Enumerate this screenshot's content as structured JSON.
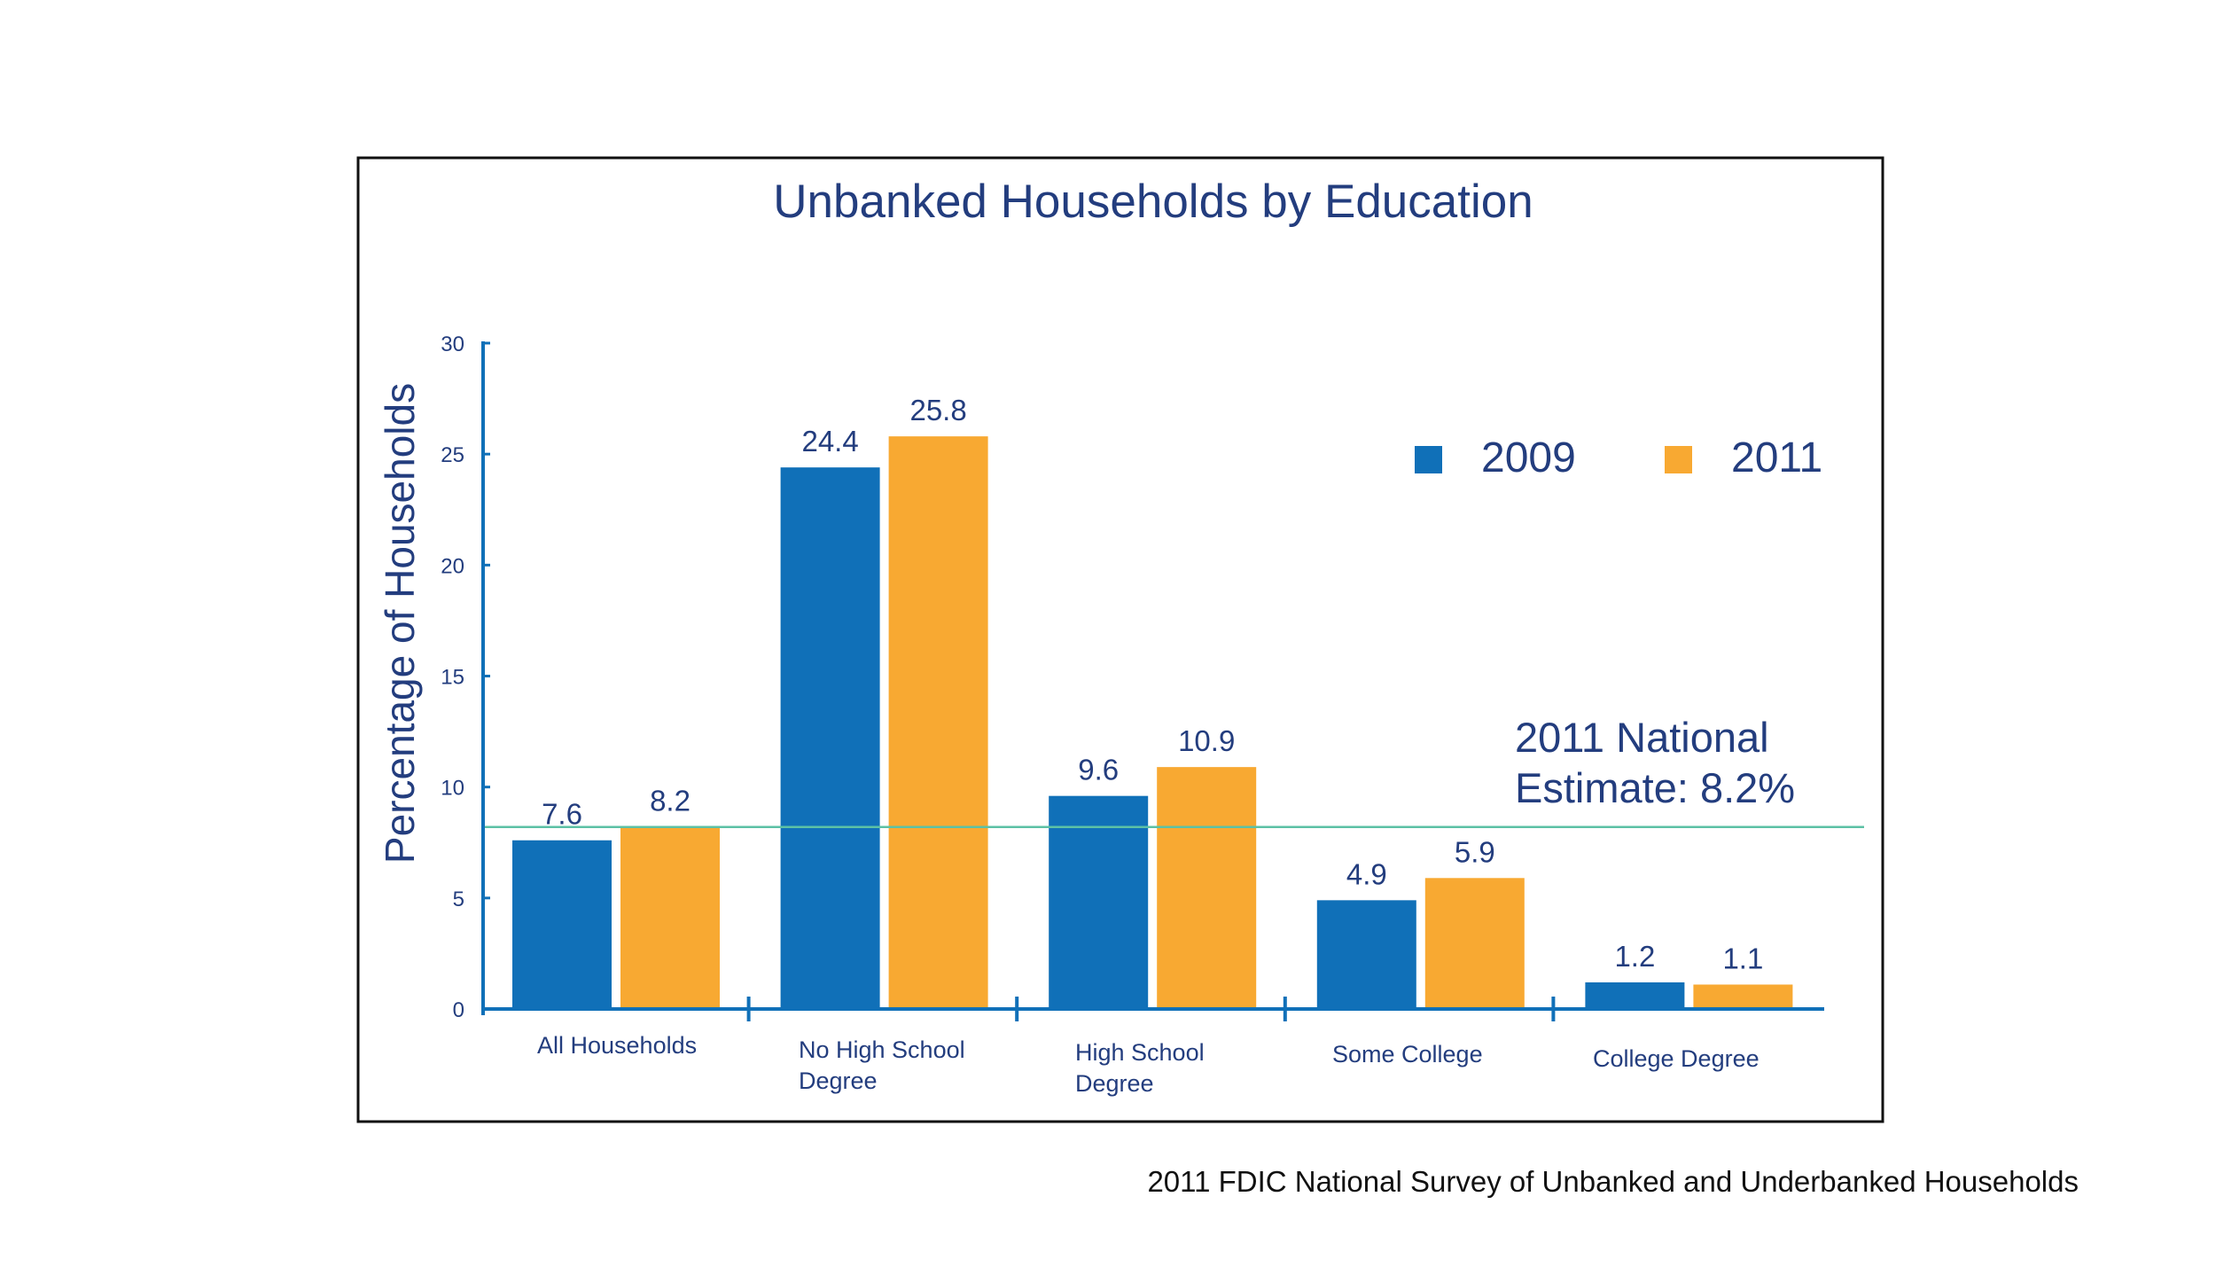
{
  "chart_data": {
    "type": "bar",
    "title": "Unbanked Households by Education",
    "ylabel": "Percentage of Households",
    "xlabel": "",
    "ylim": [
      0,
      30
    ],
    "yticks": [
      "0",
      "5",
      "10",
      "15",
      "20",
      "25",
      "30"
    ],
    "categories": [
      [
        "All Households"
      ],
      [
        "No High School",
        "Degree"
      ],
      [
        "High School",
        "Degree"
      ],
      [
        "Some College"
      ],
      [
        "College Degree"
      ]
    ],
    "series": [
      {
        "name": "2009",
        "values": [
          7.6,
          24.4,
          9.6,
          4.9,
          1.2
        ],
        "labels": [
          "7.6",
          "24.4",
          "9.6",
          "4.9",
          "1.2"
        ],
        "color": "#1070b8"
      },
      {
        "name": "2011",
        "values": [
          8.2,
          25.8,
          10.9,
          5.9,
          1.1
        ],
        "labels": [
          "8.2",
          "25.8",
          "10.9",
          "5.9",
          "1.1"
        ],
        "color": "#f8a932"
      }
    ],
    "reference_line": {
      "value": 8.2,
      "label_lines": [
        "2011 National",
        "Estimate: 8.2%"
      ],
      "color": "#5cc1a5"
    },
    "legend": "top-right",
    "grid": false
  },
  "colors": {
    "axis": "#1070b8",
    "text": "#233d7e",
    "frame": "#111111"
  },
  "source": "2011 FDIC National Survey of Unbanked and Underbanked Households"
}
